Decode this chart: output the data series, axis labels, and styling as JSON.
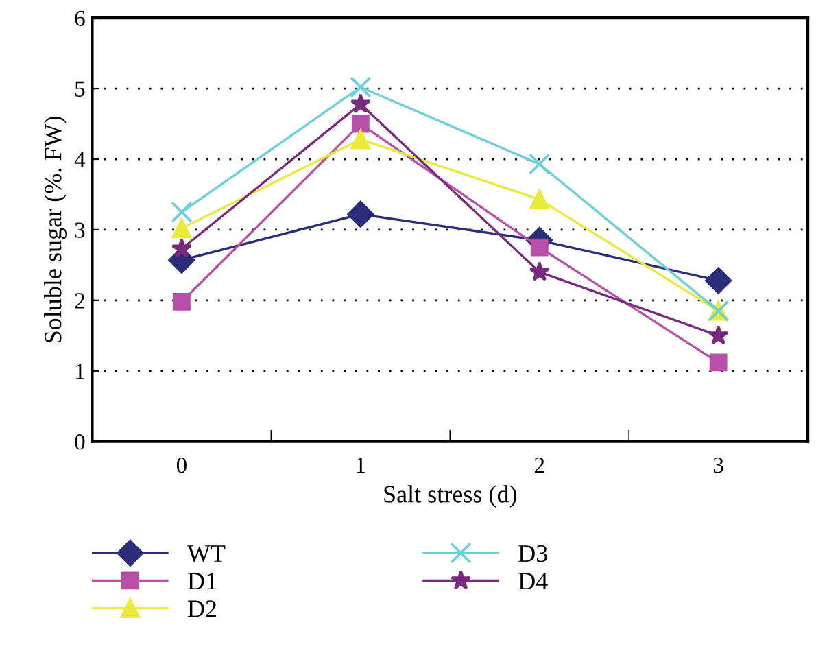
{
  "chart_data": {
    "type": "line",
    "xlabel": "Salt stress (d)",
    "ylabel": "Soluble sugar (%. FW)",
    "categories": [
      "0",
      "1",
      "2",
      "3"
    ],
    "series": [
      {
        "name": "WT",
        "color": "#2b2d7a",
        "marker": "diamond",
        "values": [
          2.57,
          3.22,
          2.85,
          2.28
        ]
      },
      {
        "name": "D1",
        "color": "#b84fa8",
        "marker": "square",
        "values": [
          1.98,
          4.5,
          2.75,
          1.12
        ]
      },
      {
        "name": "D2",
        "color": "#eaea3a",
        "marker": "triangle",
        "values": [
          3.02,
          4.28,
          3.43,
          1.85
        ]
      },
      {
        "name": "D3",
        "color": "#6ccfdc",
        "marker": "cross",
        "values": [
          3.25,
          5.02,
          3.93,
          1.85
        ]
      },
      {
        "name": "D4",
        "color": "#7a2a7e",
        "marker": "star",
        "values": [
          2.73,
          4.78,
          2.4,
          1.5
        ]
      }
    ],
    "ylim": [
      0,
      6
    ],
    "yticks": [
      0,
      1,
      2,
      3,
      4,
      5,
      6
    ],
    "grid": "y",
    "legend": "bottom"
  }
}
